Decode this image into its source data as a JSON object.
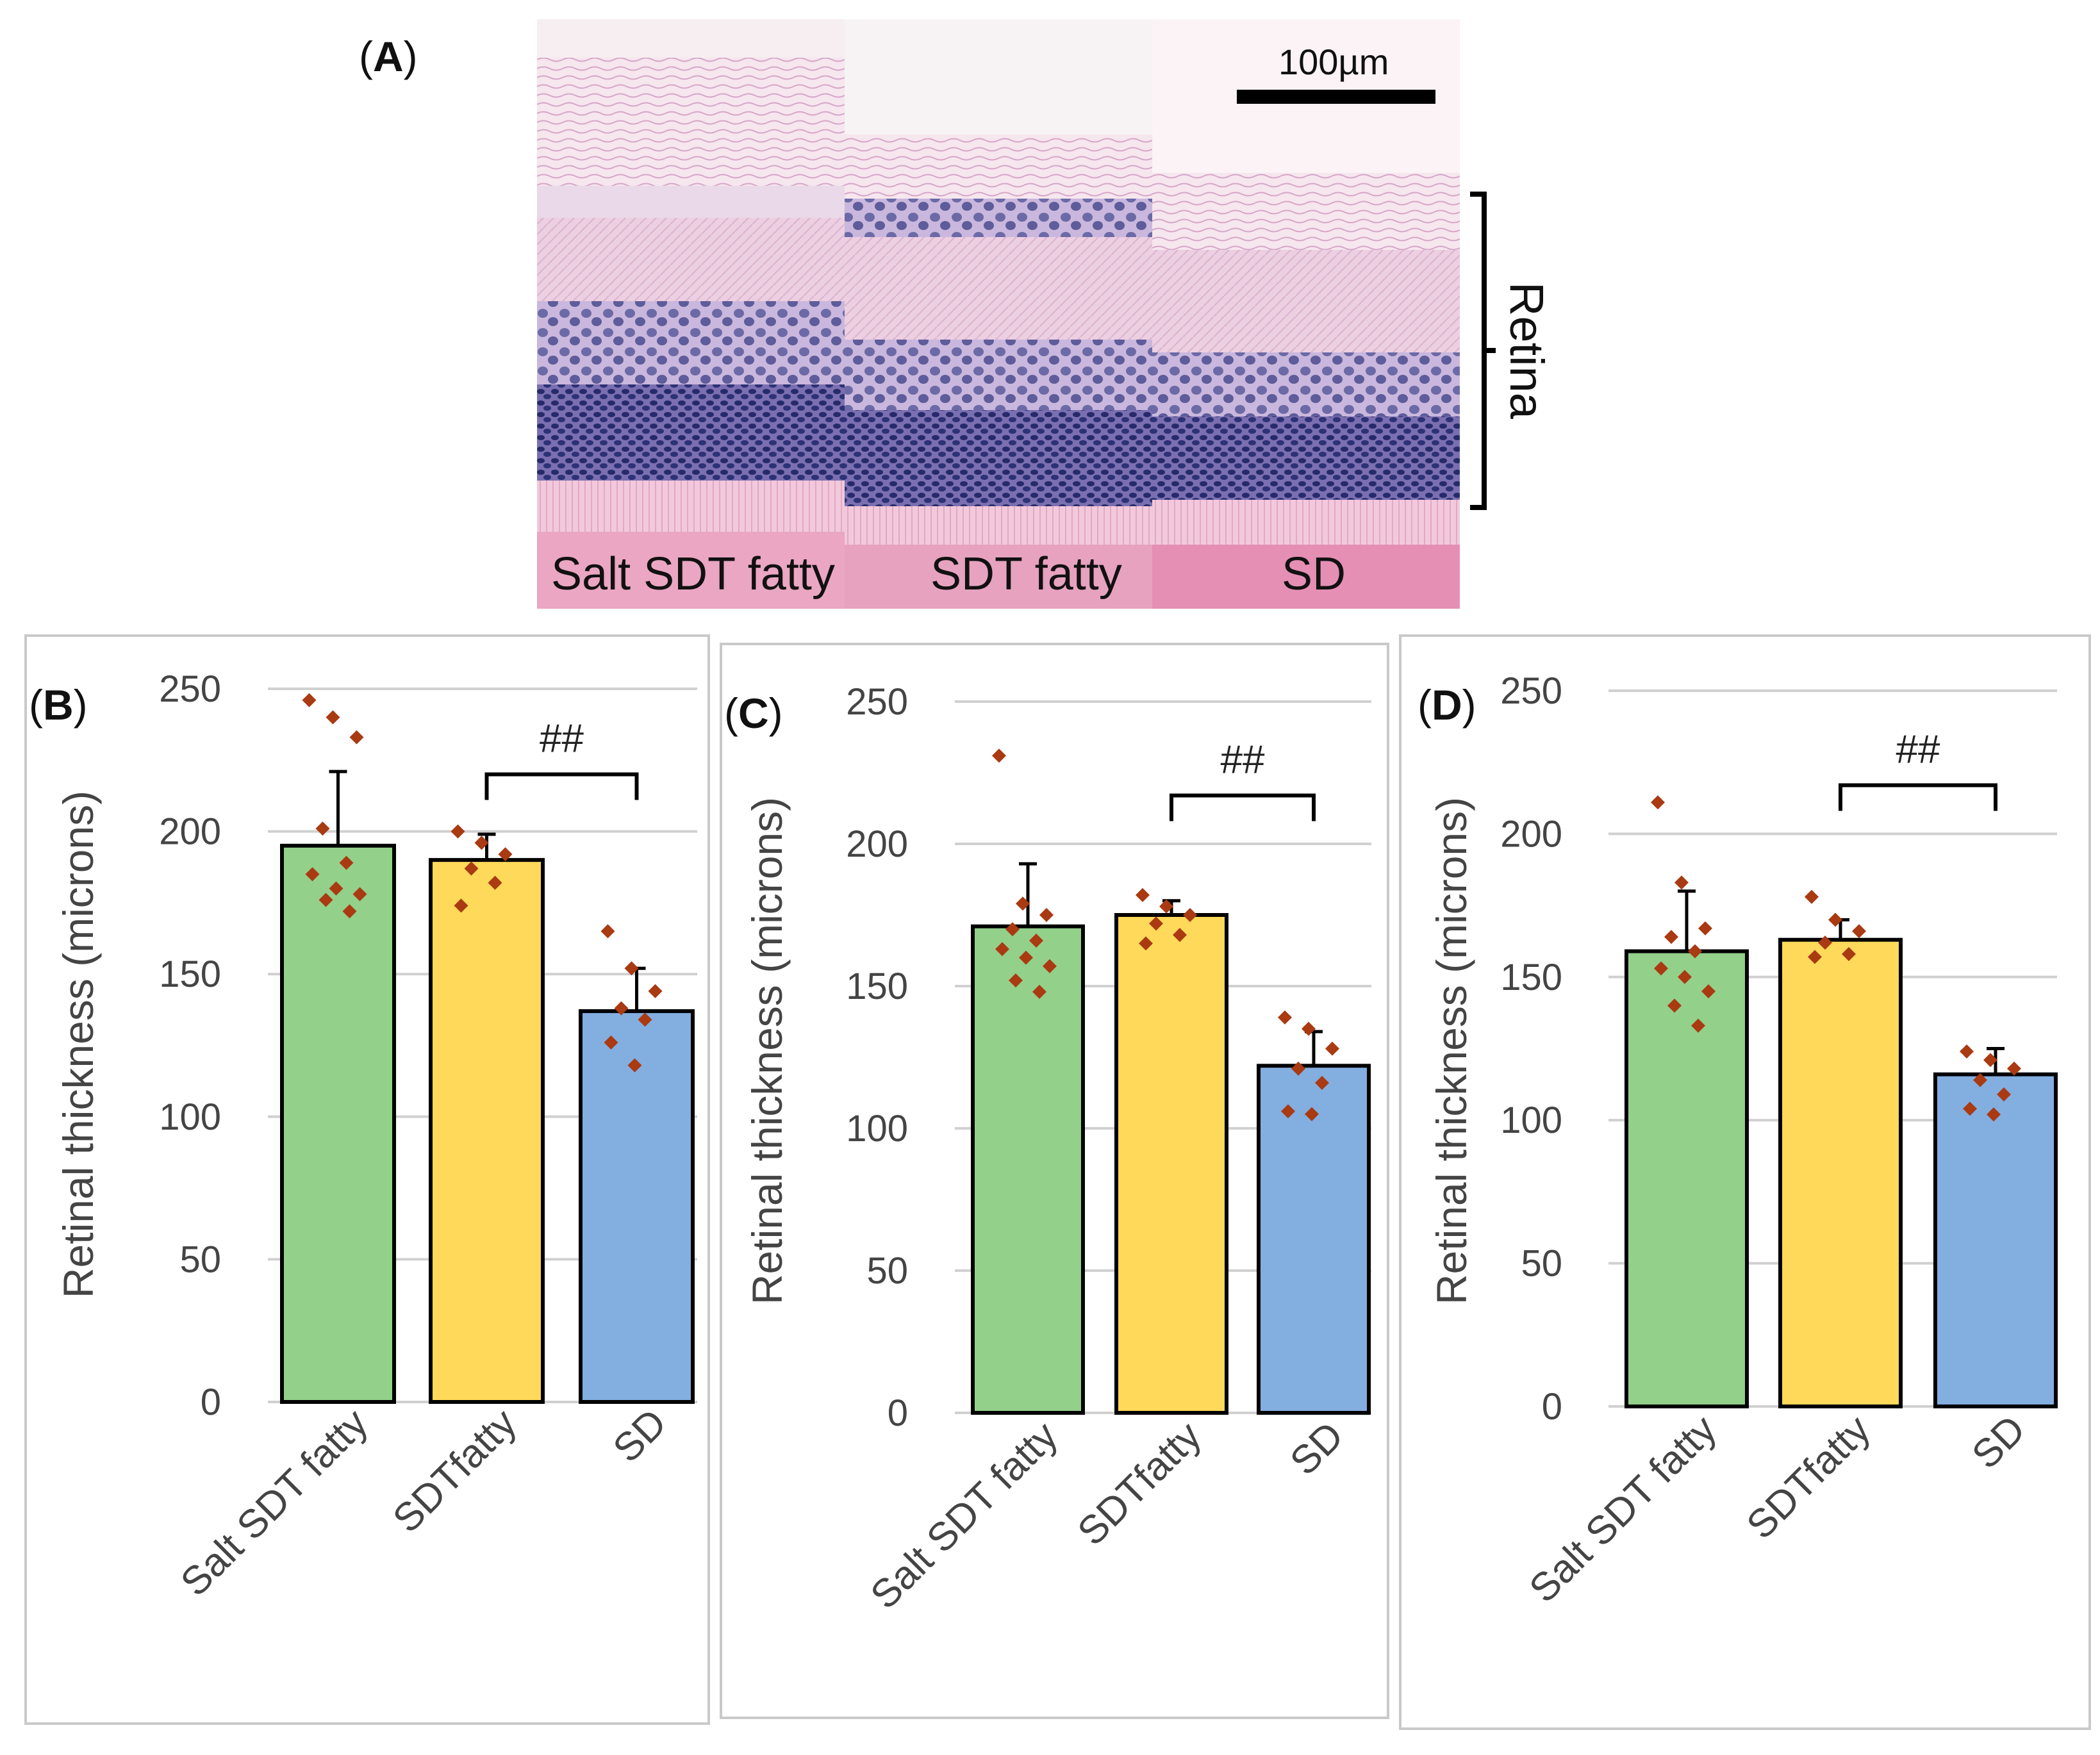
{
  "panel_a": {
    "label_letter": "A",
    "scale_bar": "100µm",
    "bracket_label": "Retina",
    "image_labels": [
      "Salt SDT fatty",
      "SDT fatty",
      "SD"
    ]
  },
  "colors": {
    "salt_sdt_fatty": "#93d08a",
    "sdt_fatty": "#ffd95a",
    "sd": "#83aee0",
    "points": "#a93a12",
    "grid": "#d0d0d0",
    "frame": "#c9c9c9",
    "axis_text": "#444444"
  },
  "chart_data": [
    {
      "panel": "B",
      "type": "bar",
      "title": "",
      "xlabel": "",
      "ylabel": "Retinal thickness (microns)",
      "ylim": [
        0,
        250
      ],
      "yticks": [
        0,
        50,
        100,
        150,
        200,
        250
      ],
      "grid": true,
      "categories": [
        "Salt SDT fatty",
        "SDTfatty",
        "SD"
      ],
      "values": [
        195,
        190,
        137
      ],
      "errors": [
        26,
        9,
        15
      ],
      "points": [
        [
          246,
          240,
          233,
          201,
          189,
          185,
          180,
          178,
          176,
          172
        ],
        [
          200,
          196,
          192,
          187,
          182,
          174
        ],
        [
          165,
          152,
          144,
          138,
          134,
          126,
          118
        ]
      ],
      "significance": {
        "from": 1,
        "to": 2,
        "label": "##",
        "y": 220
      }
    },
    {
      "panel": "C",
      "type": "bar",
      "title": "",
      "xlabel": "",
      "ylabel": "Retinal thickness (microns)",
      "ylim": [
        0,
        250
      ],
      "yticks": [
        0,
        50,
        100,
        150,
        200,
        250
      ],
      "grid": true,
      "categories": [
        "Salt SDT fatty",
        "SDTfatty",
        "SD"
      ],
      "values": [
        171,
        175,
        122
      ],
      "errors": [
        22,
        5,
        12
      ],
      "points": [
        [
          231,
          179,
          175,
          170,
          166,
          163,
          160,
          157,
          152,
          148
        ],
        [
          182,
          178,
          175,
          172,
          168,
          165
        ],
        [
          139,
          135,
          128,
          121,
          116,
          106,
          105
        ]
      ],
      "significance": {
        "from": 1,
        "to": 2,
        "label": "##",
        "y": 217
      }
    },
    {
      "panel": "D",
      "type": "bar",
      "title": "",
      "xlabel": "",
      "ylabel": "Retinal thickness (microns)",
      "ylim": [
        0,
        250
      ],
      "yticks": [
        0,
        50,
        100,
        150,
        200,
        250
      ],
      "grid": true,
      "categories": [
        "Salt SDT fatty",
        "SDTfatty",
        "SD"
      ],
      "values": [
        159,
        163,
        116
      ],
      "errors": [
        21,
        7,
        9
      ],
      "points": [
        [
          211,
          183,
          167,
          164,
          159,
          153,
          150,
          145,
          140,
          133
        ],
        [
          178,
          170,
          166,
          162,
          158,
          157
        ],
        [
          124,
          121,
          118,
          114,
          109,
          104,
          102
        ]
      ],
      "significance": {
        "from": 1,
        "to": 2,
        "label": "##",
        "y": 217
      }
    }
  ]
}
